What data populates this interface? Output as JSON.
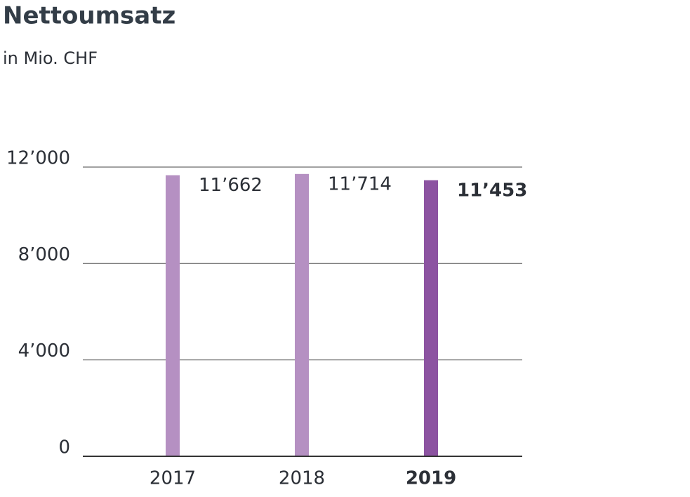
{
  "chart_data": {
    "type": "bar",
    "title": "Nettoumsatz",
    "subtitle": "in Mio. CHF",
    "categories": [
      "2017",
      "2018",
      "2019"
    ],
    "values": [
      11662,
      11714,
      11453
    ],
    "value_labels": [
      "11’662",
      "11’714",
      "11’453"
    ],
    "colors": [
      "#b590c2",
      "#b590c2",
      "#8c53a1"
    ],
    "bold": [
      false,
      false,
      true
    ],
    "ylim": [
      0,
      12000
    ],
    "yticks": [
      0,
      {
        "value": 4000,
        "label": "4’000"
      },
      {
        "value": 8000,
        "label": "8’000"
      },
      {
        "value": 12000,
        "label": "12’000"
      }
    ],
    "grid": true
  }
}
